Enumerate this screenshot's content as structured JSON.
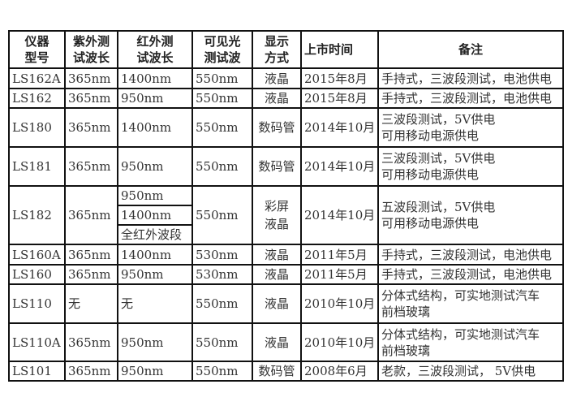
{
  "headers": [
    "仪器\n型号",
    "紫外测\n试波长",
    "红外测\n试波长",
    "可见光\n测试波",
    "显示\n方式",
    "上市时间",
    "备注"
  ],
  "rows": [
    {
      "model": "LS162A",
      "uv": "365nm",
      "ir": [
        "1400nm"
      ],
      "visible": "550nm",
      "display": "液晶",
      "date": "2015年8月",
      "note": [
        "手持式，三波段测试，电池供电"
      ]
    },
    {
      "model": "LS162",
      "uv": "365nm",
      "ir": [
        "950nm"
      ],
      "visible": "550nm",
      "display": "液晶",
      "date": "2015年8月",
      "note": [
        "手持式，三波段测试，电池供电"
      ]
    },
    {
      "model": "LS180",
      "uv": "365nm",
      "ir": [
        "1400nm"
      ],
      "visible": "550nm",
      "display": "数码管",
      "date": "2014年10月",
      "note": [
        "三波段测试，5V供电",
        "可用移动电源供电"
      ]
    },
    {
      "model": "LS181",
      "uv": "365nm",
      "ir": [
        "950nm"
      ],
      "visible": "550nm",
      "display": "数码管",
      "date": "2014年10月",
      "note": [
        "三波段测试，5V供电",
        "可用移动电源供电"
      ]
    },
    {
      "model": "LS182",
      "uv": "365nm",
      "ir": [
        "950nm",
        "1400nm",
        "全红外波段"
      ],
      "visible": "550nm",
      "display": "彩屏\n液晶",
      "date": "2014年10月",
      "note": [
        "五波段测试，5V供电",
        "可用移动电源供电"
      ]
    },
    {
      "model": "LS160A",
      "uv": "365nm",
      "ir": [
        "1400nm"
      ],
      "visible": "530nm",
      "display": "液晶",
      "date": "2011年5月",
      "note": [
        "手持式，三波段测试，电池供电"
      ]
    },
    {
      "model": "LS160",
      "uv": "365nm",
      "ir": [
        "950nm"
      ],
      "visible": "530nm",
      "display": "液晶",
      "date": "2011年5月",
      "note": [
        "手持式，三波段测试，电池供电"
      ]
    },
    {
      "model": "LS110",
      "uv": "无",
      "ir": [
        "无"
      ],
      "visible": "550nm",
      "display": "液晶",
      "date": "2010年10月",
      "note": [
        "分体式结构，可实地测试汽车",
        "前档玻璃"
      ]
    },
    {
      "model": "LS110A",
      "uv": "365nm",
      "ir": [
        "950nm"
      ],
      "visible": "550nm",
      "display": "液晶",
      "date": "2010年10月",
      "note": [
        "分体式结构，可实地测试汽车",
        "前档玻璃"
      ]
    },
    {
      "model": "LS101",
      "uv": "365nm",
      "ir": [
        "950nm"
      ],
      "visible": "550nm",
      "display": "数码管",
      "date": "2008年6月",
      "note": [
        "老款，三波段测试， 5V供电"
      ]
    }
  ]
}
